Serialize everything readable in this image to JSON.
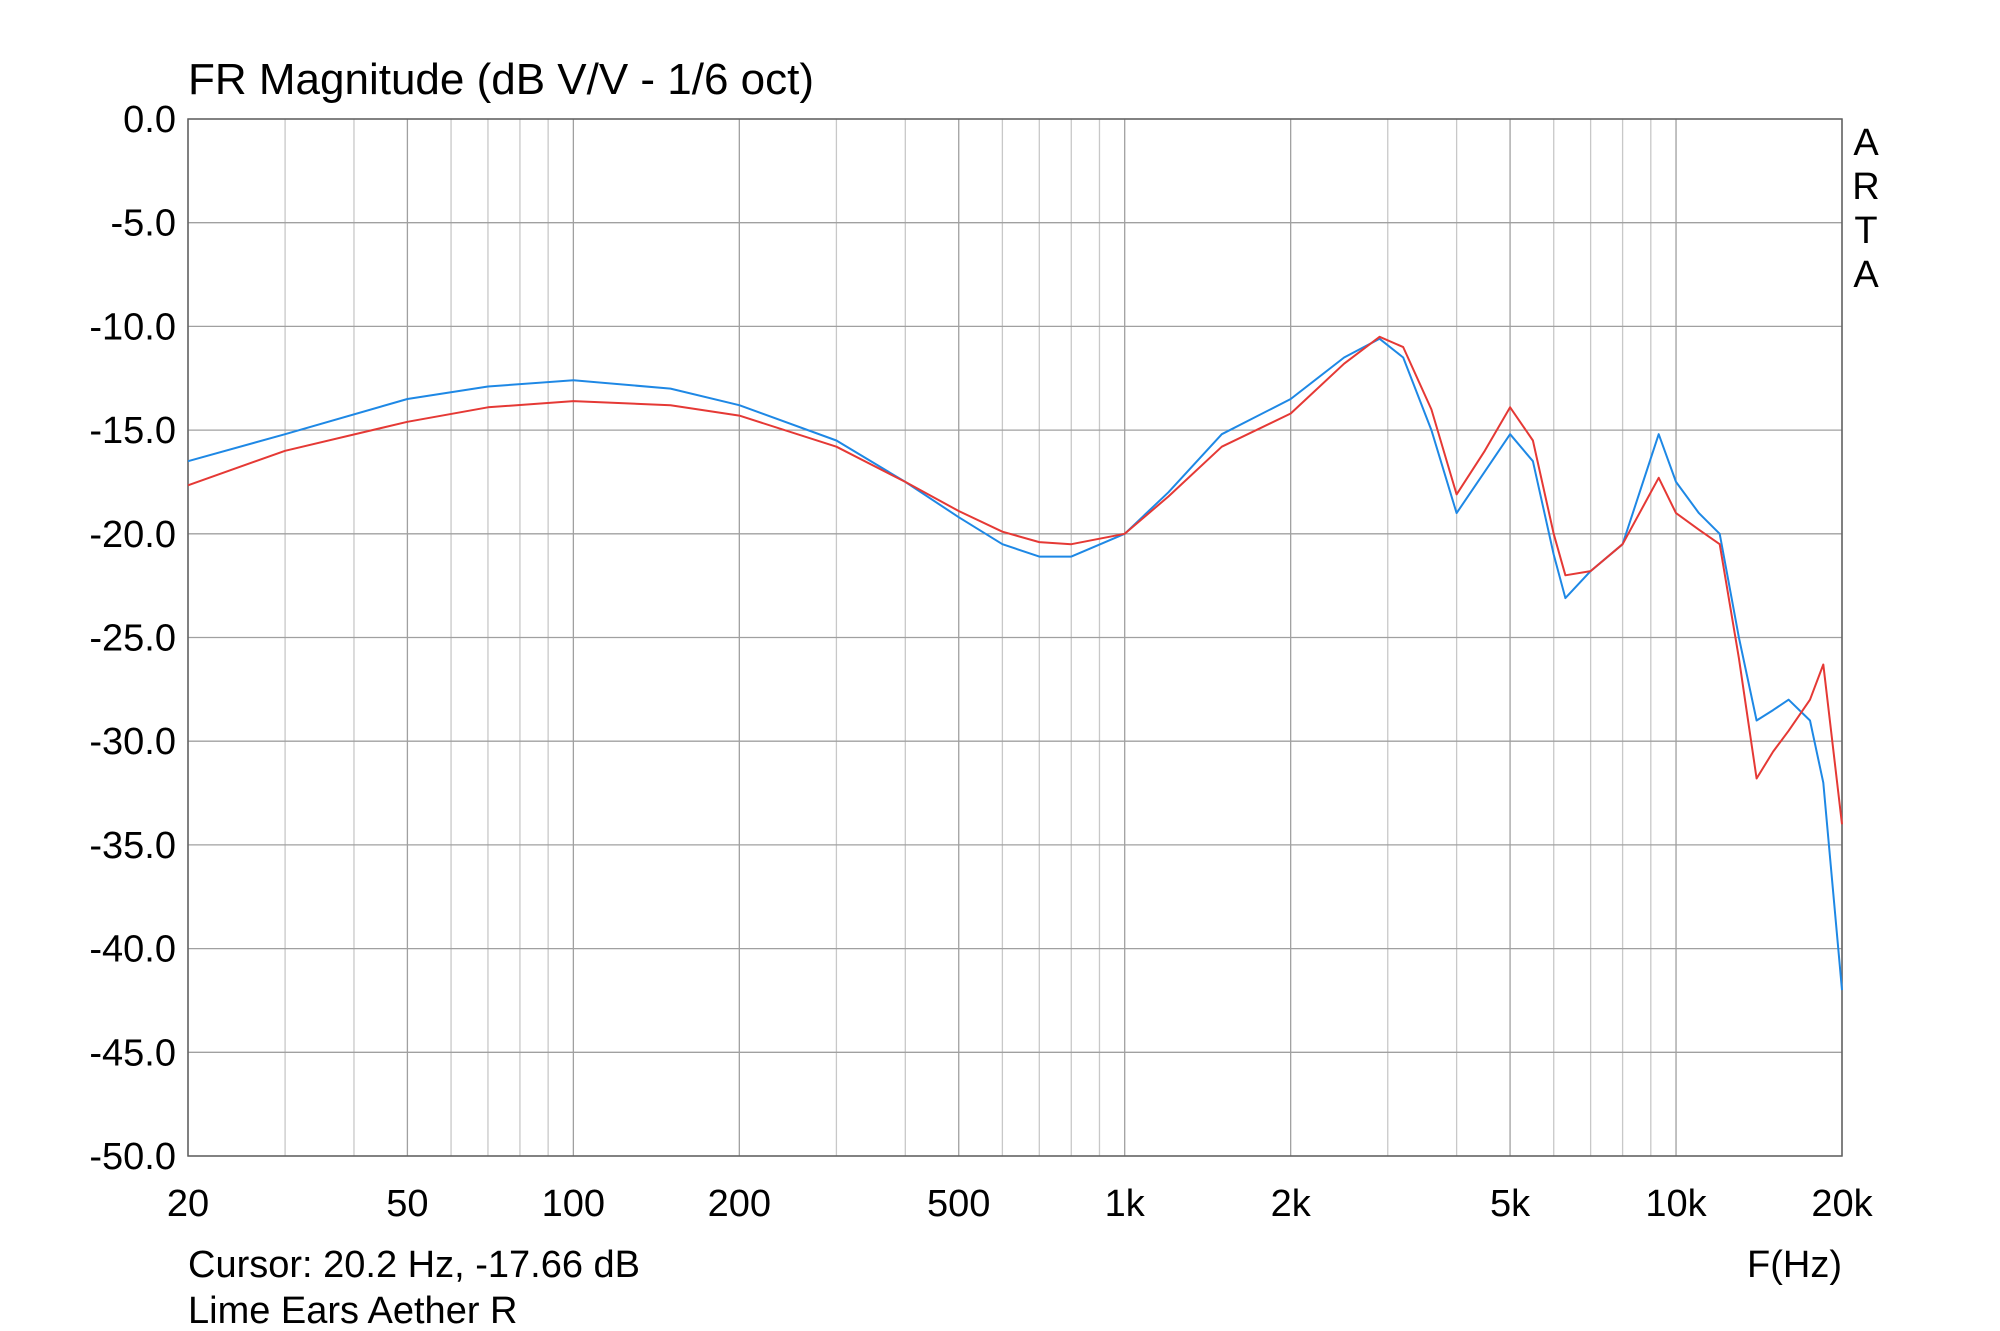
{
  "chart_data": {
    "type": "line",
    "title": "FR Magnitude (dB V/V - 1/6 oct)",
    "watermark": "ARTA",
    "cursor_text": "Cursor: 20.2 Hz, -17.66 dB",
    "x_label": "F(Hz)",
    "caption": "Lime Ears Aether R",
    "log_x": true,
    "grid": true,
    "x": [
      20,
      30,
      50,
      70,
      100,
      150,
      200,
      300,
      400,
      500,
      600,
      700,
      800,
      1000,
      1200,
      1500,
      2000,
      2500,
      2900,
      3200,
      3600,
      4000,
      4500,
      5000,
      5500,
      6000,
      6300,
      7000,
      8000,
      9300,
      10000,
      11000,
      12000,
      13000,
      14000,
      15000,
      16000,
      17500,
      18500,
      20000
    ],
    "series": [
      {
        "color": "#1e88e5",
        "values": [
          -16.5,
          -15.2,
          -13.5,
          -12.9,
          -12.6,
          -13.0,
          -13.8,
          -15.5,
          -17.5,
          -19.2,
          -20.5,
          -21.1,
          -21.1,
          -20.0,
          -18.0,
          -15.2,
          -13.5,
          -11.5,
          -10.6,
          -11.5,
          -15.0,
          -19.0,
          -17.0,
          -15.2,
          -16.5,
          -21.0,
          -23.1,
          -21.8,
          -20.5,
          -15.2,
          -17.5,
          -19.0,
          -20.0,
          -25.0,
          -29.0,
          -28.5,
          -28.0,
          -29.0,
          -32.0,
          -42.0
        ]
      },
      {
        "color": "#e53935",
        "values": [
          -17.66,
          -16.0,
          -14.6,
          -13.9,
          -13.6,
          -13.8,
          -14.3,
          -15.8,
          -17.5,
          -18.9,
          -19.9,
          -20.4,
          -20.5,
          -20.0,
          -18.2,
          -15.8,
          -14.2,
          -11.8,
          -10.5,
          -11.0,
          -14.0,
          -18.1,
          -16.0,
          -13.9,
          -15.5,
          -20.0,
          -22.0,
          -21.8,
          -20.5,
          -17.3,
          -19.0,
          -19.8,
          -20.5,
          -26.0,
          -31.8,
          -30.5,
          -29.5,
          -28.0,
          -26.3,
          -34.0
        ]
      }
    ],
    "xlim": [
      20,
      20000
    ],
    "xticks": [
      20,
      50,
      100,
      200,
      500,
      {
        "value": 1000,
        "label": "1k"
      },
      {
        "value": 2000,
        "label": "2k"
      },
      {
        "value": 5000,
        "label": "5k"
      },
      {
        "value": 10000,
        "label": "10k"
      },
      {
        "value": 20000,
        "label": "20k"
      }
    ],
    "xminorticks": [
      30,
      40,
      60,
      70,
      80,
      90,
      300,
      400,
      600,
      700,
      800,
      900,
      3000,
      4000,
      6000,
      7000,
      8000,
      9000
    ],
    "ylim": [
      -50,
      0
    ],
    "yticks": [
      {
        "value": 0,
        "label": "0.0"
      },
      {
        "value": -5,
        "label": "-5.0"
      },
      {
        "value": -10,
        "label": "-10.0"
      },
      {
        "value": -15,
        "label": "-15.0"
      },
      {
        "value": -20,
        "label": "-20.0"
      },
      {
        "value": -25,
        "label": "-25.0"
      },
      {
        "value": -30,
        "label": "-30.0"
      },
      {
        "value": -35,
        "label": "-35.0"
      },
      {
        "value": -40,
        "label": "-40.0"
      },
      {
        "value": -45,
        "label": "-45.0"
      },
      {
        "value": -50,
        "label": "-50.0"
      }
    ]
  }
}
